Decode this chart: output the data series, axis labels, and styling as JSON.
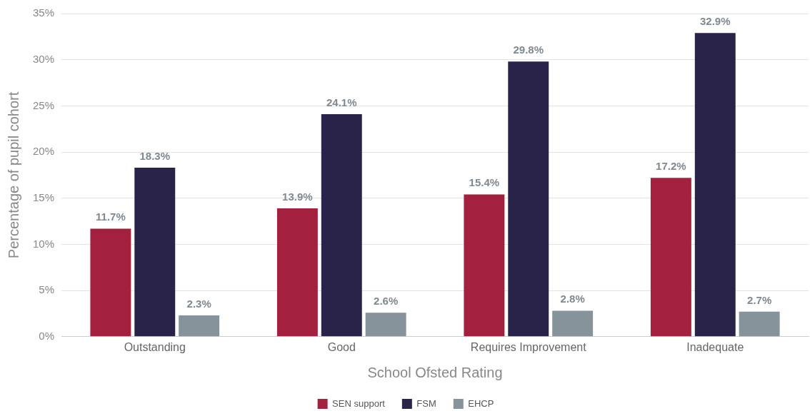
{
  "chart_data": {
    "type": "bar",
    "xlabel": "School Ofsted Rating",
    "ylabel": "Percentage of pupil cohort",
    "categories": [
      "Outstanding",
      "Good",
      "Requires Improvement",
      "Inadequate"
    ],
    "series": [
      {
        "name": "SEN support",
        "color": "#a3213f",
        "values": [
          11.7,
          13.9,
          15.4,
          17.2
        ],
        "value_labels": [
          "11.7%",
          "13.9%",
          "15.4%",
          "17.2%"
        ]
      },
      {
        "name": "FSM",
        "color": "#29234a",
        "values": [
          18.3,
          24.1,
          29.8,
          32.9
        ],
        "value_labels": [
          "18.3%",
          "24.1%",
          "29.8%",
          "32.9%"
        ]
      },
      {
        "name": "EHCP",
        "color": "#86939a",
        "values": [
          2.3,
          2.6,
          2.8,
          2.7
        ],
        "value_labels": [
          "2.3%",
          "2.6%",
          "2.8%",
          "2.7%"
        ]
      }
    ],
    "ylim": [
      0,
      35
    ],
    "yticks": [
      {
        "value": 0,
        "label": "0%"
      },
      {
        "value": 5,
        "label": "5%"
      },
      {
        "value": 10,
        "label": "10%"
      },
      {
        "value": 15,
        "label": "15%"
      },
      {
        "value": 20,
        "label": "20%"
      },
      {
        "value": 25,
        "label": "25%"
      },
      {
        "value": 30,
        "label": "30%"
      },
      {
        "value": 35,
        "label": "35%"
      }
    ],
    "grid": "y",
    "legend": "bottom"
  }
}
